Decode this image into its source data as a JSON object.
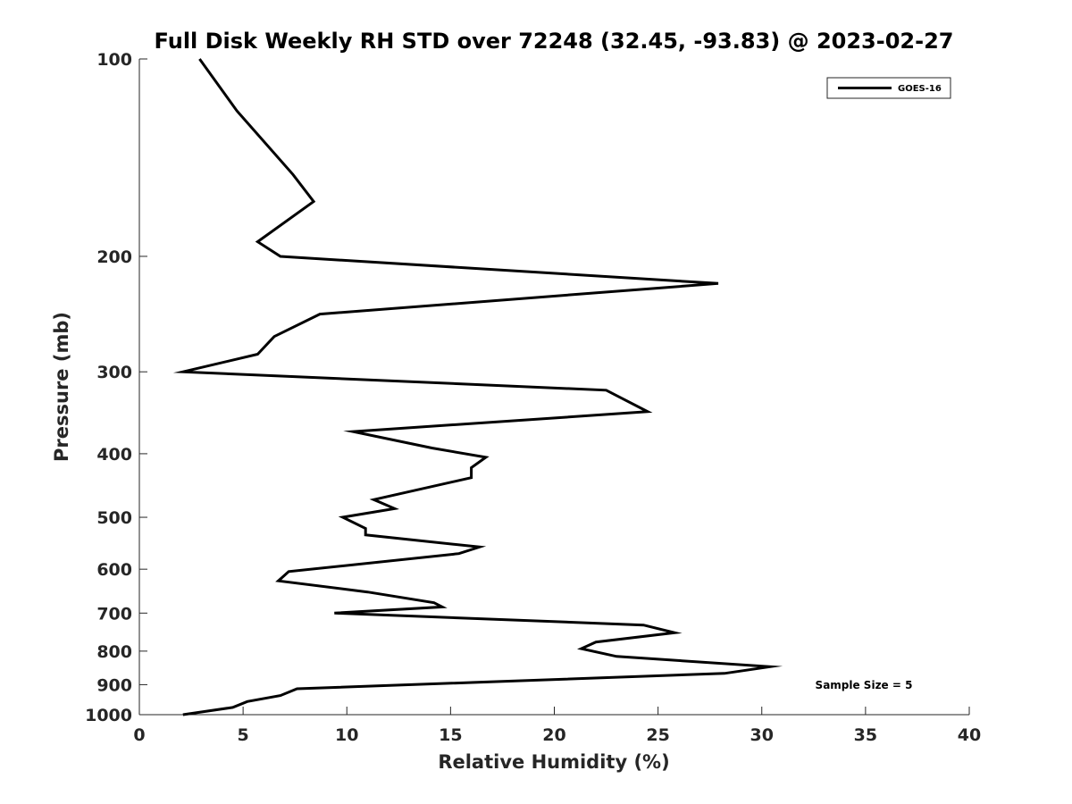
{
  "chart_data": {
    "type": "line",
    "title": "Full Disk Weekly RH STD over 72248 (32.45, -93.83) @ 2023-02-27",
    "xlabel": "Relative Humidity (%)",
    "ylabel": "Pressure (mb)",
    "xlim": [
      0,
      40
    ],
    "ylim": [
      100,
      1000
    ],
    "y_scale": "log",
    "y_reversed": true,
    "xticks": [
      0,
      5,
      10,
      15,
      20,
      25,
      30,
      35,
      40
    ],
    "yticks": [
      100,
      200,
      300,
      400,
      500,
      600,
      700,
      800,
      900,
      1000
    ],
    "grid": false,
    "legend_position": "top-right",
    "annotation": "Sample Size = 5",
    "series": [
      {
        "name": "GOES-16",
        "color": "#000000",
        "x": [
          2.9,
          4.7,
          7.4,
          8.4,
          5.7,
          6.8,
          27.9,
          8.7,
          6.5,
          5.7,
          2.1,
          22.5,
          24.5,
          10.3,
          14.1,
          16.7,
          16.0,
          16.0,
          11.3,
          12.3,
          9.8,
          10.9,
          10.9,
          16.4,
          15.4,
          7.2,
          6.7,
          11.0,
          14.2,
          14.6,
          9.4,
          24.3,
          25.8,
          22.0,
          21.3,
          23.0,
          30.4,
          28.2,
          7.6,
          6.8,
          5.2,
          4.5,
          2.1
        ],
        "y": [
          100,
          120,
          150,
          165,
          190,
          200,
          220,
          245,
          265,
          282,
          300,
          320,
          345,
          370,
          392,
          405,
          420,
          435,
          470,
          485,
          500,
          520,
          532,
          555,
          568,
          605,
          625,
          650,
          675,
          685,
          700,
          730,
          750,
          775,
          793,
          815,
          845,
          865,
          913,
          935,
          955,
          975,
          1000
        ]
      }
    ]
  }
}
